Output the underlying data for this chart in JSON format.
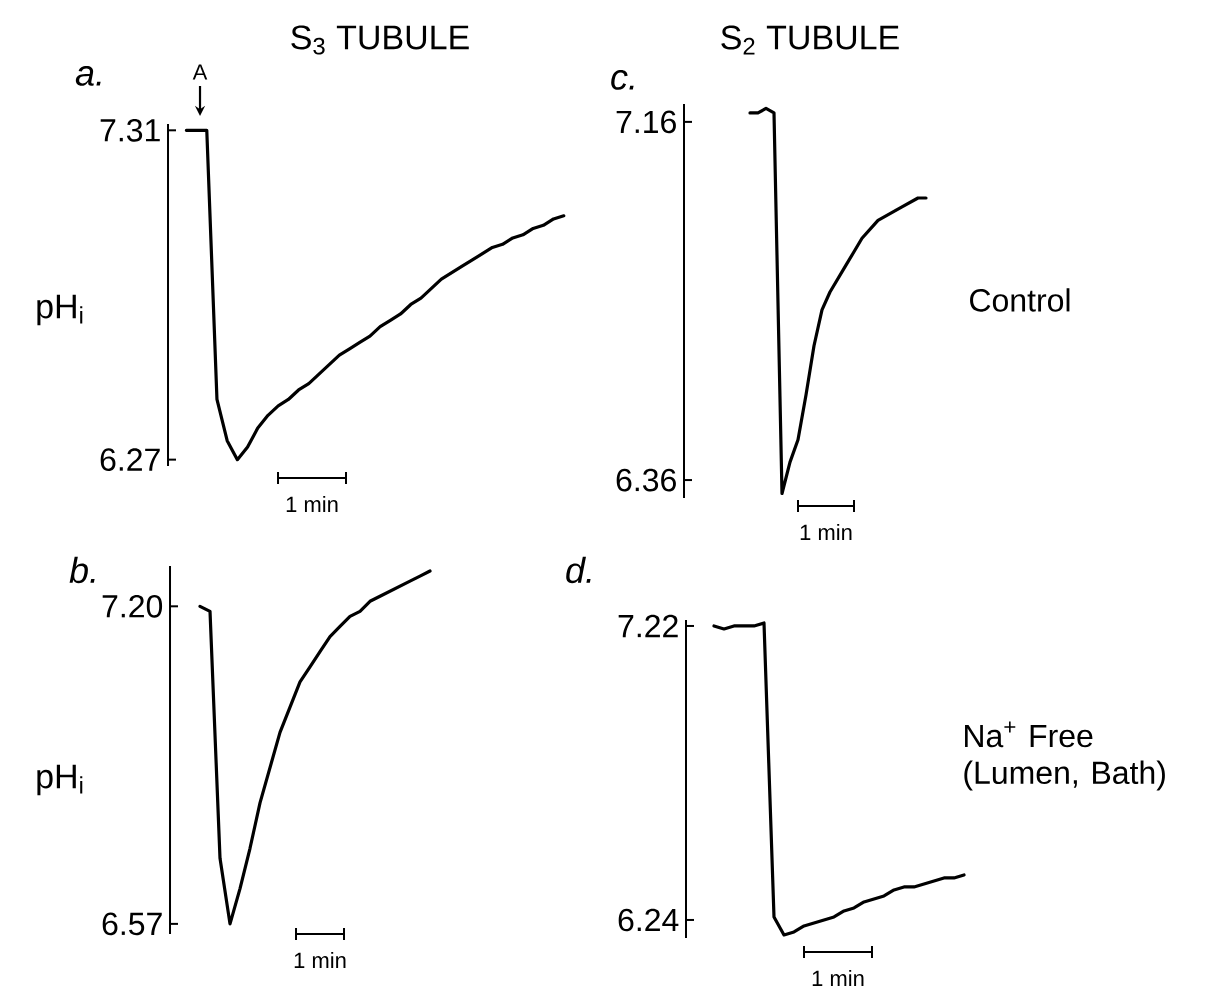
{
  "chart_data": [
    {
      "type": "line",
      "title": "S$_{3}$ TUBULE",
      "ylabel": "pH$_{i}$",
      "color": "#000000",
      "tick_labels": "y",
      "categories": [
        null,
        null,
        null,
        null,
        null,
        null,
        null,
        null,
        null,
        null,
        null,
        null,
        null,
        null,
        null,
        null,
        null,
        null,
        null,
        null,
        null,
        null,
        null,
        null,
        null,
        null,
        null,
        null,
        null,
        null,
        null,
        null,
        null,
        null,
        null,
        null,
        null,
        null
      ],
      "values": [
        7.31,
        7.31,
        7.31,
        6.46,
        6.33,
        6.27,
        6.31,
        6.37,
        6.41,
        6.44,
        6.46,
        6.49,
        6.51,
        6.54,
        6.57,
        6.6,
        6.62,
        6.64,
        6.66,
        6.69,
        6.71,
        6.73,
        6.76,
        6.78,
        6.81,
        6.84,
        6.86,
        6.88,
        6.9,
        6.92,
        6.94,
        6.95,
        6.97,
        6.98,
        7.0,
        7.01,
        7.03,
        7.04
      ],
      "ylim": [
        6.25,
        7.33
      ],
      "yticks": [
        6.27,
        7.31
      ],
      "annotations": [
        "a.",
        "A",
        "1 min"
      ]
    },
    {
      "type": "line",
      "title": "S$_{2}$ TUBULE",
      "color": "#000000",
      "tick_labels": "y",
      "categories": [
        null,
        null,
        null,
        null,
        null,
        null,
        null,
        null,
        null,
        null,
        null,
        null,
        null,
        null,
        null,
        null,
        null,
        null,
        null,
        null,
        null,
        null,
        null
      ],
      "values": [
        7.18,
        7.18,
        7.19,
        7.18,
        6.33,
        6.4,
        6.45,
        6.55,
        6.66,
        6.74,
        6.78,
        6.81,
        6.84,
        6.87,
        6.9,
        6.92,
        6.94,
        6.95,
        6.96,
        6.97,
        6.98,
        6.99,
        6.99
      ],
      "ylim": [
        6.32,
        7.2
      ],
      "yticks": [
        6.36,
        7.16
      ],
      "annotations": [
        "c.",
        "1 min",
        "Control"
      ]
    },
    {
      "type": "line",
      "ylabel": "pH$_{i}$",
      "color": "#000000",
      "tick_labels": "y",
      "categories": [
        null,
        null,
        null,
        null,
        null,
        null,
        null,
        null,
        null,
        null,
        null,
        null,
        null,
        null,
        null,
        null,
        null,
        null,
        null,
        null,
        null,
        null,
        null,
        null
      ],
      "values": [
        7.2,
        7.19,
        6.7,
        6.57,
        6.64,
        6.72,
        6.81,
        6.88,
        6.95,
        7.0,
        7.05,
        7.08,
        7.11,
        7.14,
        7.16,
        7.18,
        7.19,
        7.21,
        7.22,
        7.23,
        7.24,
        7.25,
        7.26,
        7.27
      ],
      "ylim": [
        6.55,
        7.28
      ],
      "yticks": [
        6.57,
        {
          "value": 7.2,
          "label": "7.20"
        }
      ],
      "annotations": [
        "b.",
        "1 min"
      ]
    },
    {
      "type": "line",
      "color": "#000000",
      "tick_labels": "y",
      "categories": [
        null,
        null,
        null,
        null,
        null,
        null,
        null,
        null,
        null,
        null,
        null,
        null,
        null,
        null,
        null,
        null,
        null,
        null,
        null,
        null,
        null,
        null,
        null,
        null,
        null,
        null
      ],
      "values": [
        7.22,
        7.21,
        7.22,
        7.22,
        7.22,
        7.23,
        6.25,
        6.19,
        6.2,
        6.22,
        6.23,
        6.24,
        6.25,
        6.27,
        6.28,
        6.3,
        6.31,
        6.32,
        6.34,
        6.35,
        6.35,
        6.36,
        6.37,
        6.38,
        6.38,
        6.39
      ],
      "ylim": [
        6.18,
        7.24
      ],
      "yticks": [
        6.24,
        7.22
      ],
      "annotations": [
        "d.",
        "1 min",
        "Na$^{+}$ Free (Lumen, Bath)"
      ]
    }
  ]
}
